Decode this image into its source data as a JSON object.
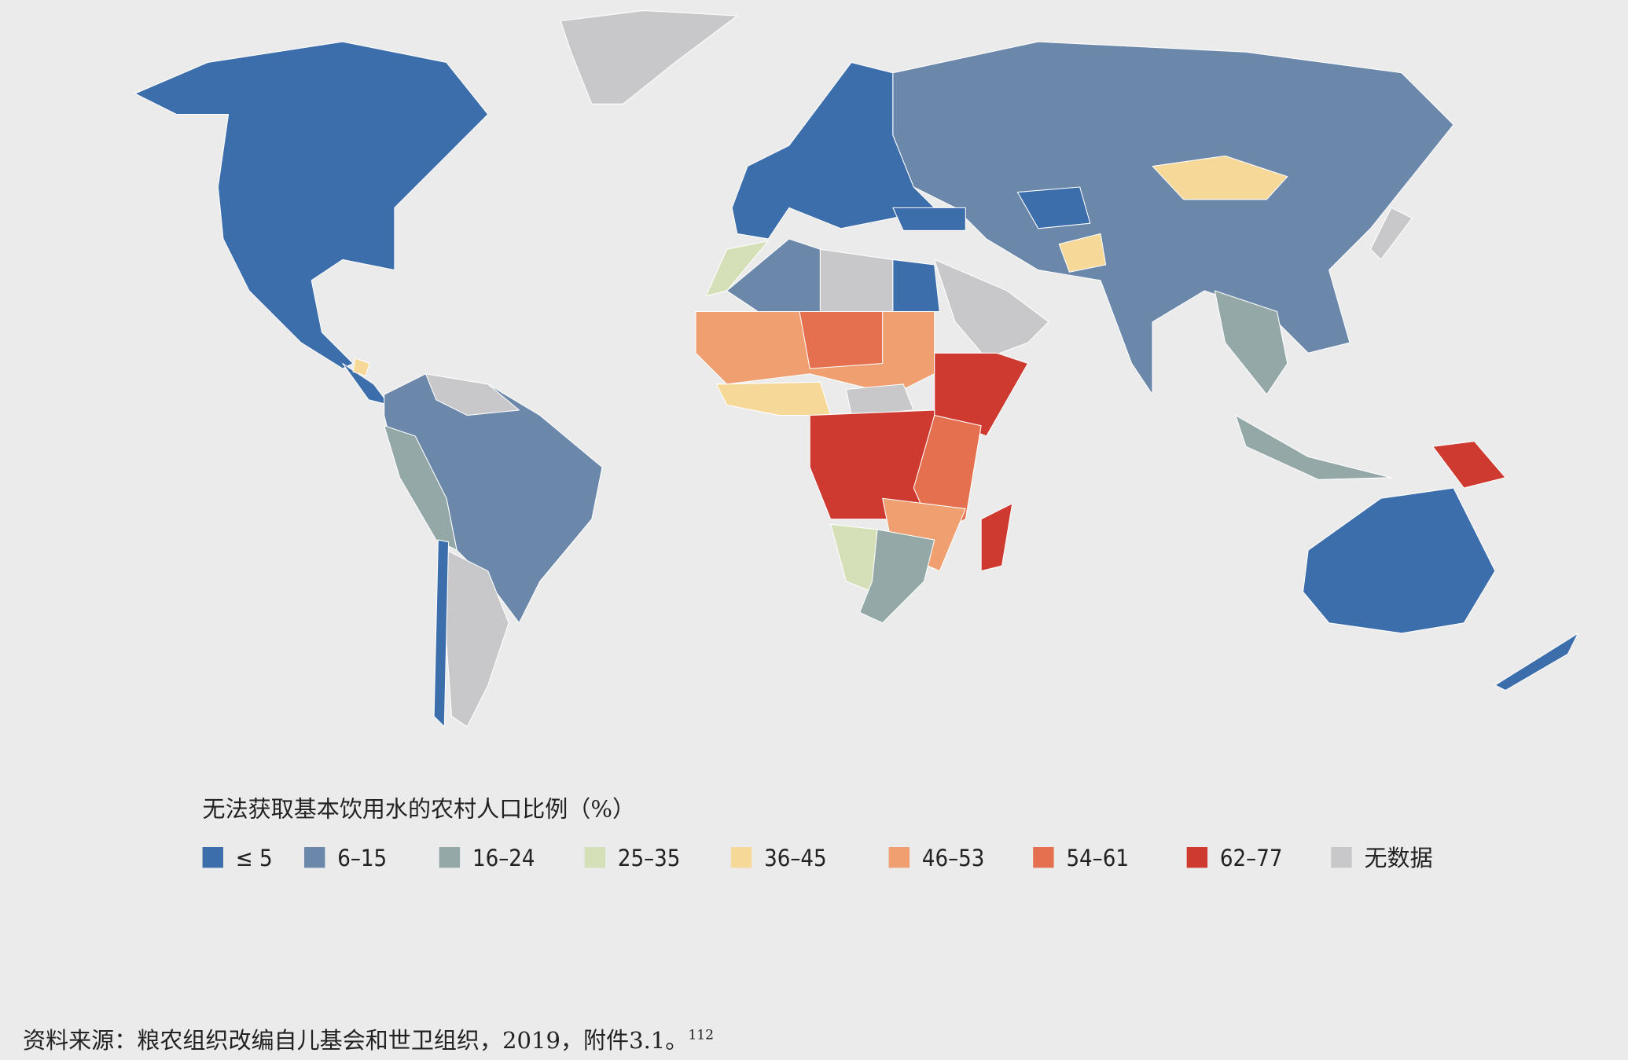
{
  "legend": {
    "title": "无法获取基本饮用水的农村人口比例（%）",
    "items": [
      {
        "label": "≤ 5",
        "color": "#3d6eac"
      },
      {
        "label": "6–15",
        "color": "#6b88ab"
      },
      {
        "label": "16–24",
        "color": "#94a8a8"
      },
      {
        "label": "25–35",
        "color": "#d5e0b8"
      },
      {
        "label": "36–45",
        "color": "#f6d898"
      },
      {
        "label": "46–53",
        "color": "#f0a070"
      },
      {
        "label": "54–61",
        "color": "#e5704f"
      },
      {
        "label": "62–77",
        "color": "#cf3a30"
      },
      {
        "label": "无数据",
        "color": "#c8c8ca"
      }
    ]
  },
  "source": {
    "text": "资料来源：粮农组织改编自儿基会和世卫组织，2019，附件3.1。",
    "note": "112"
  }
}
